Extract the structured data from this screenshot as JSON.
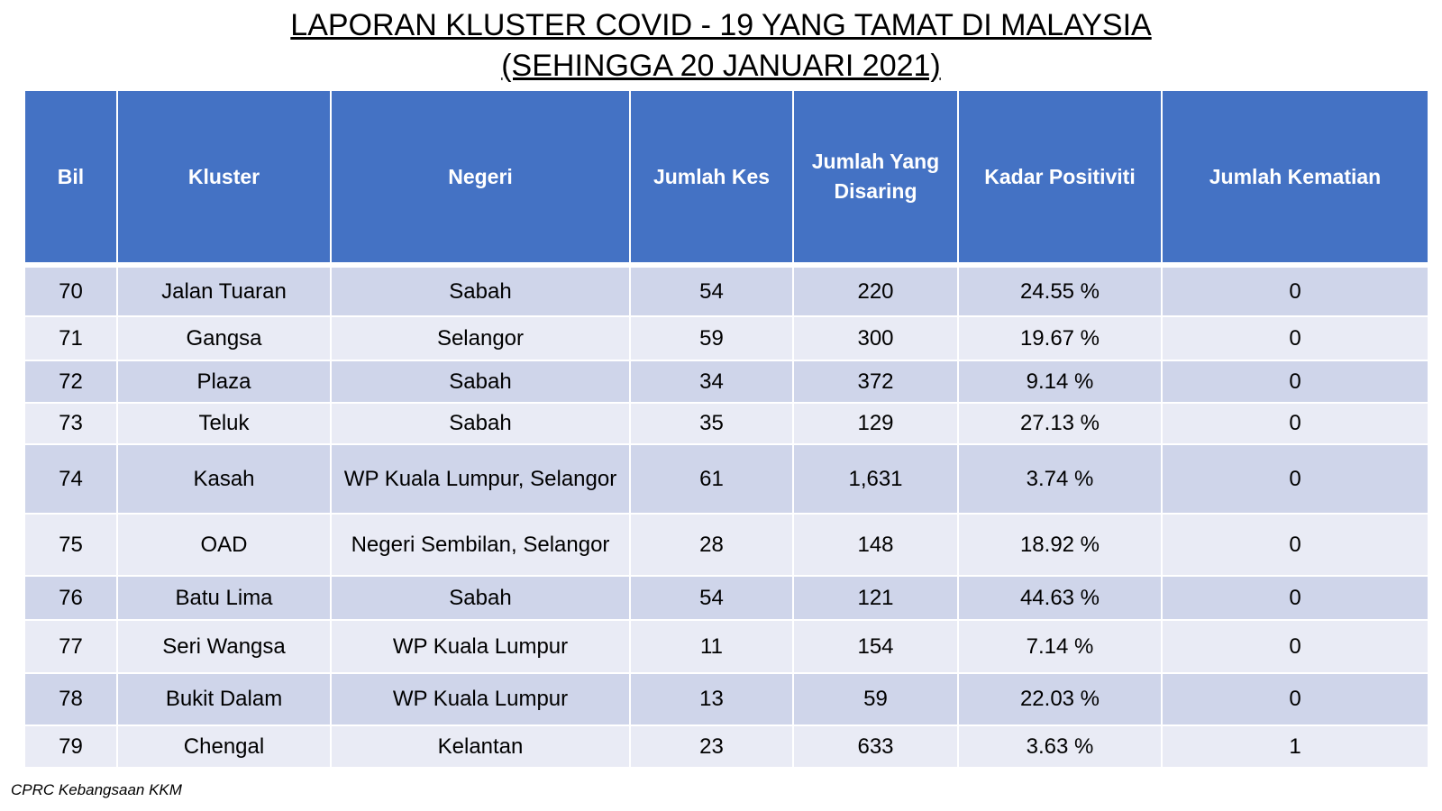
{
  "title": {
    "line1": "LAPORAN KLUSTER COVID - 19 YANG TAMAT DI MALAYSIA",
    "line2": "(SEHINGGA 20 JANUARI 2021)"
  },
  "table": {
    "headers": [
      "Bil",
      "Kluster",
      "Negeri",
      "Jumlah Kes",
      "Jumlah Yang Disaring",
      "Kadar Positiviti",
      "Jumlah Kematian"
    ],
    "rows": [
      [
        "70",
        "Jalan Tuaran",
        "Sabah",
        "54",
        "220",
        "24.55 %",
        "0"
      ],
      [
        "71",
        "Gangsa",
        "Selangor",
        "59",
        "300",
        "19.67 %",
        "0"
      ],
      [
        "72",
        "Plaza",
        "Sabah",
        "34",
        "372",
        "9.14 %",
        "0"
      ],
      [
        "73",
        "Teluk",
        "Sabah",
        "35",
        "129",
        "27.13 %",
        "0"
      ],
      [
        "74",
        "Kasah",
        "WP Kuala Lumpur, Selangor",
        "61",
        "1,631",
        "3.74 %",
        "0"
      ],
      [
        "75",
        "OAD",
        "Negeri Sembilan, Selangor",
        "28",
        "148",
        "18.92 %",
        "0"
      ],
      [
        "76",
        "Batu Lima",
        "Sabah",
        "54",
        "121",
        "44.63 %",
        "0"
      ],
      [
        "77",
        "Seri Wangsa",
        "WP Kuala Lumpur",
        "11",
        "154",
        "7.14 %",
        "0"
      ],
      [
        "78",
        "Bukit Dalam",
        "WP Kuala Lumpur",
        "13",
        "59",
        "22.03 %",
        "0"
      ],
      [
        "79",
        "Chengal",
        "Kelantan",
        "23",
        "633",
        "3.63 %",
        "1"
      ]
    ]
  },
  "footer": "CPRC Kebangsaan KKM",
  "colors": {
    "header_bg": "#4472c4",
    "row_dark": "#cfd5ea",
    "row_light": "#e9ebf5"
  }
}
